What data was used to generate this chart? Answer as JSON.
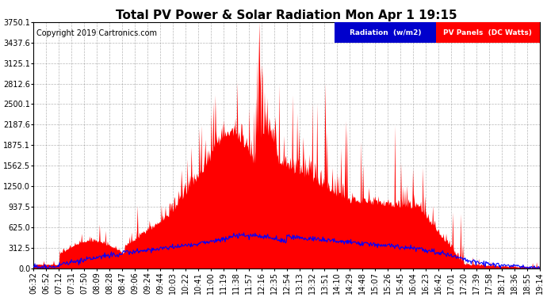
{
  "title": "Total PV Power & Solar Radiation Mon Apr 1 19:15",
  "copyright_text": "Copyright 2019 Cartronics.com",
  "legend_radiation": "Radiation  (w/m2)",
  "legend_pv": "PV Panels  (DC Watts)",
  "pv_fill_color": "#ff0000",
  "radiation_line_color": "#0000ff",
  "background_color": "#ffffff",
  "grid_color": "#888888",
  "ylim": [
    0,
    3750.1
  ],
  "yticks": [
    0.0,
    312.5,
    625.0,
    937.5,
    1250.0,
    1562.5,
    1875.1,
    2187.6,
    2500.1,
    2812.6,
    3125.1,
    3437.6,
    3750.1
  ],
  "ytick_labels": [
    "0.0",
    "312.5",
    "625.0",
    "937.5",
    "1250.0",
    "1562.5",
    "1875.1",
    "2187.6",
    "2500.1",
    "2812.6",
    "3125.1",
    "3437.6",
    "3750.1"
  ],
  "x_labels": [
    "06:32",
    "06:52",
    "07:12",
    "07:31",
    "07:50",
    "08:09",
    "08:28",
    "08:47",
    "09:06",
    "09:24",
    "09:44",
    "10:03",
    "10:22",
    "10:41",
    "11:00",
    "11:19",
    "11:38",
    "11:57",
    "12:16",
    "12:35",
    "12:54",
    "13:13",
    "13:32",
    "13:51",
    "14:10",
    "14:29",
    "14:48",
    "15:07",
    "15:26",
    "15:45",
    "16:04",
    "16:23",
    "16:42",
    "17:01",
    "17:20",
    "17:39",
    "17:58",
    "18:17",
    "18:36",
    "18:55",
    "19:14"
  ],
  "title_fontsize": 11,
  "axis_fontsize": 7,
  "copyright_fontsize": 7
}
